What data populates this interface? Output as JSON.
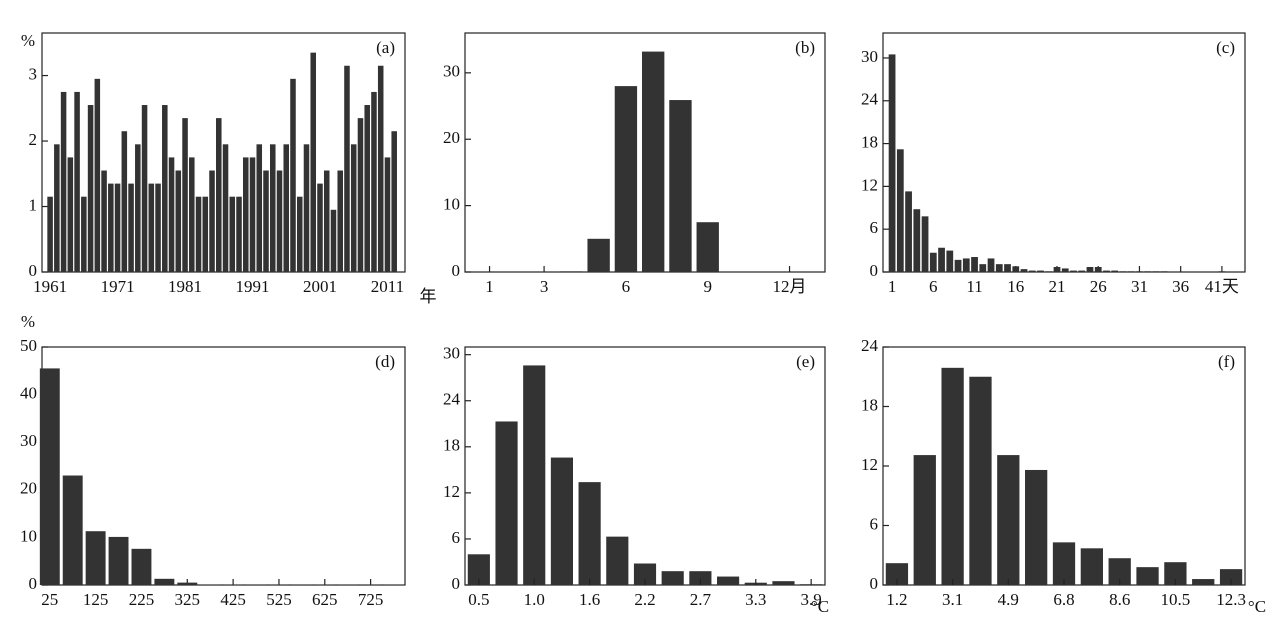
{
  "chart_data": [
    {
      "type": "bar",
      "annotation": "(a)",
      "ylabel": "%",
      "xlabel": "年",
      "color": "#333333",
      "x": [
        1961,
        1962,
        1963,
        1964,
        1965,
        1966,
        1967,
        1968,
        1969,
        1970,
        1971,
        1972,
        1973,
        1974,
        1975,
        1976,
        1977,
        1978,
        1979,
        1980,
        1981,
        1982,
        1983,
        1984,
        1985,
        1986,
        1987,
        1988,
        1989,
        1990,
        1991,
        1992,
        1993,
        1994,
        1995,
        1996,
        1997,
        1998,
        1999,
        2000,
        2001,
        2002,
        2003,
        2004,
        2005,
        2006,
        2007,
        2008,
        2009,
        2010,
        2011,
        2012
      ],
      "values": [
        1.15,
        1.95,
        2.75,
        1.75,
        2.75,
        1.15,
        2.55,
        2.95,
        1.55,
        1.35,
        1.35,
        2.15,
        1.35,
        1.95,
        2.55,
        1.35,
        1.35,
        2.55,
        1.75,
        1.55,
        2.35,
        1.75,
        1.15,
        1.15,
        1.55,
        2.35,
        1.95,
        1.15,
        1.15,
        1.75,
        1.75,
        1.95,
        1.55,
        1.95,
        1.55,
        1.95,
        2.95,
        1.15,
        1.95,
        3.35,
        1.35,
        1.55,
        0.95,
        1.55,
        3.15,
        1.95,
        2.35,
        2.55,
        2.75,
        3.15,
        1.75,
        2.15
      ],
      "xlim": [
        1959.8,
        2013.6
      ],
      "xticks": [
        1961,
        1971,
        1981,
        1991,
        2001,
        2011
      ],
      "ylim": [
        0,
        3.65
      ],
      "yticks": [
        0,
        1,
        2,
        3
      ]
    },
    {
      "type": "bar",
      "annotation": "(b)",
      "color": "#333333",
      "x": [
        1,
        2,
        3,
        4,
        5,
        6,
        7,
        8,
        9,
        10,
        11,
        12
      ],
      "values": [
        0,
        0,
        0,
        0.1,
        5,
        28,
        33.2,
        25.9,
        7.5,
        0,
        0,
        0
      ],
      "xlim": [
        0.1,
        13.3
      ],
      "xticks": [
        1,
        3,
        6,
        9,
        {
          "value": 12,
          "label": "12月"
        }
      ],
      "ylim": [
        0,
        36
      ],
      "yticks": [
        0,
        10,
        20,
        30
      ]
    },
    {
      "type": "bar",
      "annotation": "(c)",
      "color": "#333333",
      "x": [
        1,
        2,
        3,
        4,
        5,
        6,
        7,
        8,
        9,
        10,
        11,
        12,
        13,
        14,
        15,
        16,
        17,
        18,
        19,
        20,
        21,
        22,
        23,
        24,
        25,
        26,
        27,
        28,
        29,
        30,
        31,
        32,
        33,
        34,
        35,
        36,
        37,
        38,
        39,
        40,
        41,
        42,
        43
      ],
      "values": [
        30.5,
        17.2,
        11.3,
        8.8,
        7.8,
        2.7,
        3.4,
        3.0,
        1.7,
        1.9,
        2.1,
        1.1,
        1.9,
        1.1,
        1.1,
        0.8,
        0.4,
        0.2,
        0.2,
        0.1,
        0.7,
        0.5,
        0.2,
        0.2,
        0.7,
        0.7,
        0.2,
        0.2,
        0.1,
        0.1,
        0.1,
        0.1,
        0.1,
        0.1,
        0,
        0,
        0,
        0,
        0,
        0,
        0.1,
        0,
        0
      ],
      "xlim": [
        -0.1,
        43.8
      ],
      "xticks": [
        1,
        6,
        11,
        16,
        21,
        26,
        31,
        36,
        {
          "value": 41,
          "label": "41天"
        }
      ],
      "ylim": [
        0,
        33.5
      ],
      "yticks": [
        0,
        6,
        12,
        18,
        24,
        30
      ]
    },
    {
      "type": "histogram",
      "annotation": "(d)",
      "ylabel": "%",
      "color": "#333333",
      "bins": [
        0,
        50,
        100,
        150,
        200,
        250,
        300,
        350,
        400,
        450,
        500,
        550,
        600,
        650,
        700,
        750,
        800
      ],
      "values": [
        45.5,
        23,
        11.3,
        10.1,
        7.6,
        1.3,
        0.5,
        0.1,
        0.1,
        0.1,
        0.1,
        0.1,
        0.1,
        0.1,
        0.1,
        0.1
      ],
      "xlim": [
        8,
        800
      ],
      "xticks": [
        25,
        125,
        225,
        325,
        425,
        525,
        625,
        725
      ],
      "ylim": [
        0,
        50
      ],
      "yticks": [
        0,
        10,
        20,
        30,
        40,
        50
      ]
    },
    {
      "type": "bar",
      "annotation": "(e)",
      "xlabel": "°C",
      "color": "#333333",
      "categories": [
        "0.5",
        null,
        "1.0",
        null,
        "1.6",
        null,
        "2.2",
        null,
        "2.7",
        null,
        "3.3",
        null,
        "3.9"
      ],
      "values": [
        4.0,
        21.3,
        28.6,
        16.6,
        13.4,
        6.3,
        2.8,
        1.8,
        1.8,
        1.1,
        0.3,
        0.5,
        0.1
      ],
      "ylim": [
        0,
        31
      ],
      "yticks": [
        0,
        6,
        12,
        18,
        24,
        30
      ]
    },
    {
      "type": "bar",
      "annotation": "(f)",
      "xlabel": "°C",
      "color": "#333333",
      "categories": [
        "1.2",
        null,
        "3.1",
        null,
        "4.9",
        null,
        "6.8",
        null,
        "8.6",
        null,
        "10.5",
        null,
        "12.3"
      ],
      "values": [
        2.2,
        13.1,
        21.9,
        21.0,
        13.1,
        11.6,
        4.3,
        3.7,
        2.7,
        1.8,
        2.3,
        0.6,
        1.6
      ],
      "ylim": [
        0,
        24
      ],
      "yticks": [
        0,
        6,
        12,
        18,
        24
      ]
    }
  ]
}
